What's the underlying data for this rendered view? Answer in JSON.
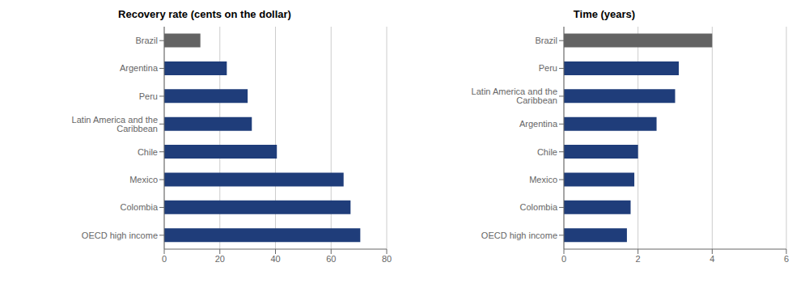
{
  "chart_data": [
    {
      "type": "bar",
      "orientation": "horizontal",
      "title": "Recovery rate (cents on the dollar)",
      "categories": [
        "Brazil",
        "Argentina",
        "Peru",
        "Latin America and the Caribbean",
        "Chile",
        "Mexico",
        "Colombia",
        "OECD high income"
      ],
      "values": [
        13.0,
        22.5,
        30.0,
        31.5,
        40.5,
        64.5,
        67.0,
        70.5
      ],
      "colors": [
        "#636363",
        "#1f3d7a",
        "#1f3d7a",
        "#1f3d7a",
        "#1f3d7a",
        "#1f3d7a",
        "#1f3d7a",
        "#1f3d7a"
      ],
      "xlim": [
        0,
        80
      ],
      "xticks": [
        0,
        20,
        40,
        60,
        80
      ],
      "grid": true
    },
    {
      "type": "bar",
      "orientation": "horizontal",
      "title": "Time (years)",
      "categories": [
        "Brazil",
        "Peru",
        "Latin America and the Caribbean",
        "Argentina",
        "Chile",
        "Mexico",
        "Colombia",
        "OECD high income"
      ],
      "values": [
        4.0,
        3.1,
        3.0,
        2.5,
        2.0,
        1.9,
        1.8,
        1.7
      ],
      "colors": [
        "#636363",
        "#1f3d7a",
        "#1f3d7a",
        "#1f3d7a",
        "#1f3d7a",
        "#1f3d7a",
        "#1f3d7a",
        "#1f3d7a"
      ],
      "xlim": [
        0,
        6
      ],
      "xticks": [
        0,
        2,
        4,
        6
      ],
      "grid": true
    }
  ]
}
